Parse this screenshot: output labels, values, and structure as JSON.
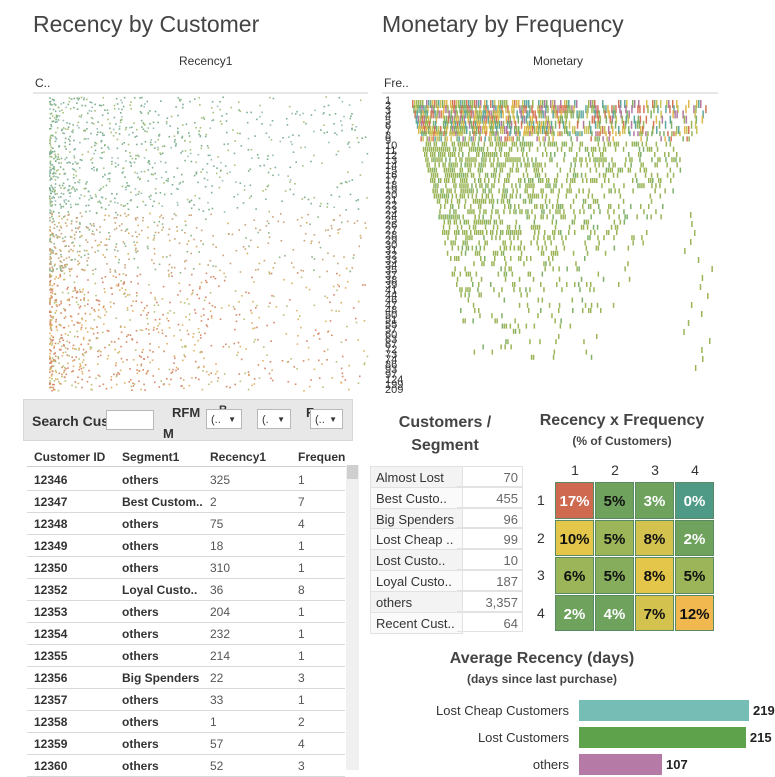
{
  "colors": {
    "accent_red": "#d6694b",
    "accent_green": "#6fa25f",
    "accent_yellow": "#e6c445",
    "accent_teal": "#5fa8a0",
    "accent_olive": "#9bb558"
  },
  "recency_by_customer": {
    "title": "Recency by Customer",
    "col_header": "Recency1",
    "row_header": "C.."
  },
  "monetary_by_frequency": {
    "title": "Monetary by Frequency",
    "col_header": "Monetary",
    "row_header": "Fre..",
    "row_labels": [
      "1",
      "2",
      "3",
      "4",
      "5",
      "6",
      "7",
      "8",
      "9",
      "10",
      "11",
      "12",
      "13",
      "14",
      "15",
      "16",
      "17",
      "18",
      "19",
      "20",
      "21",
      "22",
      "23",
      "24",
      "25",
      "26",
      "27",
      "28",
      "29",
      "30",
      "31",
      "32",
      "33",
      "34",
      "35",
      "37",
      "38",
      "39",
      "41",
      "44",
      "46",
      "47",
      "48",
      "50",
      "51",
      "55",
      "57",
      "60",
      "63",
      "67",
      "72",
      "73",
      "74",
      "86",
      "93",
      "97",
      "124",
      "199",
      "209"
    ]
  },
  "filters": {
    "search_label": "Search Cus",
    "search_value": "",
    "rfm_label": "RFM",
    "rfm_sub": "M",
    "r_label": "R",
    "f_label": "F",
    "dropdown_value": "(..",
    "dropdown_short": "(."
  },
  "customer_table": {
    "columns": [
      "Customer ID",
      "Segment1",
      "Recency1",
      "Frequen"
    ],
    "rows": [
      [
        "12346",
        "others",
        "325",
        "1"
      ],
      [
        "12347",
        "Best Custom..",
        "2",
        "7"
      ],
      [
        "12348",
        "others",
        "75",
        "4"
      ],
      [
        "12349",
        "others",
        "18",
        "1"
      ],
      [
        "12350",
        "others",
        "310",
        "1"
      ],
      [
        "12352",
        "Loyal Custo..",
        "36",
        "8"
      ],
      [
        "12353",
        "others",
        "204",
        "1"
      ],
      [
        "12354",
        "others",
        "232",
        "1"
      ],
      [
        "12355",
        "others",
        "214",
        "1"
      ],
      [
        "12356",
        "Big Spenders",
        "22",
        "3"
      ],
      [
        "12357",
        "others",
        "33",
        "1"
      ],
      [
        "12358",
        "others",
        "1",
        "2"
      ],
      [
        "12359",
        "others",
        "57",
        "4"
      ],
      [
        "12360",
        "others",
        "52",
        "3"
      ]
    ]
  },
  "segments": {
    "title_line1": "Customers /",
    "title_line2": "Segment",
    "rows": [
      [
        "Almost Lost",
        "70"
      ],
      [
        "Best Custo..",
        "455"
      ],
      [
        "Big Spenders",
        "96"
      ],
      [
        "Lost Cheap ..",
        "99"
      ],
      [
        "Lost Custo..",
        "10"
      ],
      [
        "Loyal Custo..",
        "187"
      ],
      [
        "others",
        "3,357"
      ],
      [
        "Recent Cust..",
        "64"
      ]
    ]
  },
  "recency_x_frequency": {
    "title": "Recency x Frequency",
    "subtitle": "(% of Customers)",
    "col_labels": [
      "1",
      "2",
      "3",
      "4"
    ],
    "row_labels": [
      "1",
      "2",
      "3",
      "4"
    ],
    "cells": [
      [
        "17%",
        "5%",
        "3%",
        "0%"
      ],
      [
        "10%",
        "5%",
        "8%",
        "2%"
      ],
      [
        "6%",
        "5%",
        "8%",
        "5%"
      ],
      [
        "2%",
        "4%",
        "7%",
        "12%"
      ]
    ],
    "cell_colors": [
      [
        "#cf6a50",
        "#6ea25d",
        "#6ea25d",
        "#4f9a86"
      ],
      [
        "#e3c64a",
        "#9bb558",
        "#d4c24f",
        "#6ea25d"
      ],
      [
        "#9bb558",
        "#86ad5b",
        "#e3c64a",
        "#9bb558"
      ],
      [
        "#6ea25d",
        "#6ea25d",
        "#d4c24f",
        "#f0b84e"
      ]
    ],
    "text_colors": [
      [
        "#ffffff",
        "#111111",
        "#ffffff",
        "#ffffff"
      ],
      [
        "#111111",
        "#111111",
        "#111111",
        "#ffffff"
      ],
      [
        "#111111",
        "#111111",
        "#111111",
        "#111111"
      ],
      [
        "#ffffff",
        "#ffffff",
        "#111111",
        "#111111"
      ]
    ]
  },
  "chart_data": [
    {
      "type": "scatter",
      "title": "Recency by Customer",
      "xlabel": "Recency1",
      "ylabel": "C..",
      "grid": false
    },
    {
      "type": "heatmap",
      "title": "Monetary by Frequency",
      "xlabel": "Monetary",
      "ylabel": "Fre.."
    },
    {
      "type": "heatmap",
      "title": "Recency x Frequency",
      "subtitle": "(% of Customers)",
      "x": [
        "1",
        "2",
        "3",
        "4"
      ],
      "y": [
        "1",
        "2",
        "3",
        "4"
      ],
      "values": [
        [
          17,
          5,
          3,
          0
        ],
        [
          10,
          5,
          8,
          2
        ],
        [
          6,
          5,
          8,
          5
        ],
        [
          2,
          4,
          7,
          12
        ]
      ]
    },
    {
      "type": "bar",
      "title": "Average Recency (days)",
      "subtitle": "(days since last purchase)",
      "categories": [
        "Lost Cheap Customers",
        "Lost Customers",
        "others"
      ],
      "values": [
        219,
        215,
        107
      ],
      "xlim": [
        0,
        230
      ],
      "colors": [
        "#76bdb5",
        "#5ea24c",
        "#b57aa6"
      ]
    }
  ]
}
